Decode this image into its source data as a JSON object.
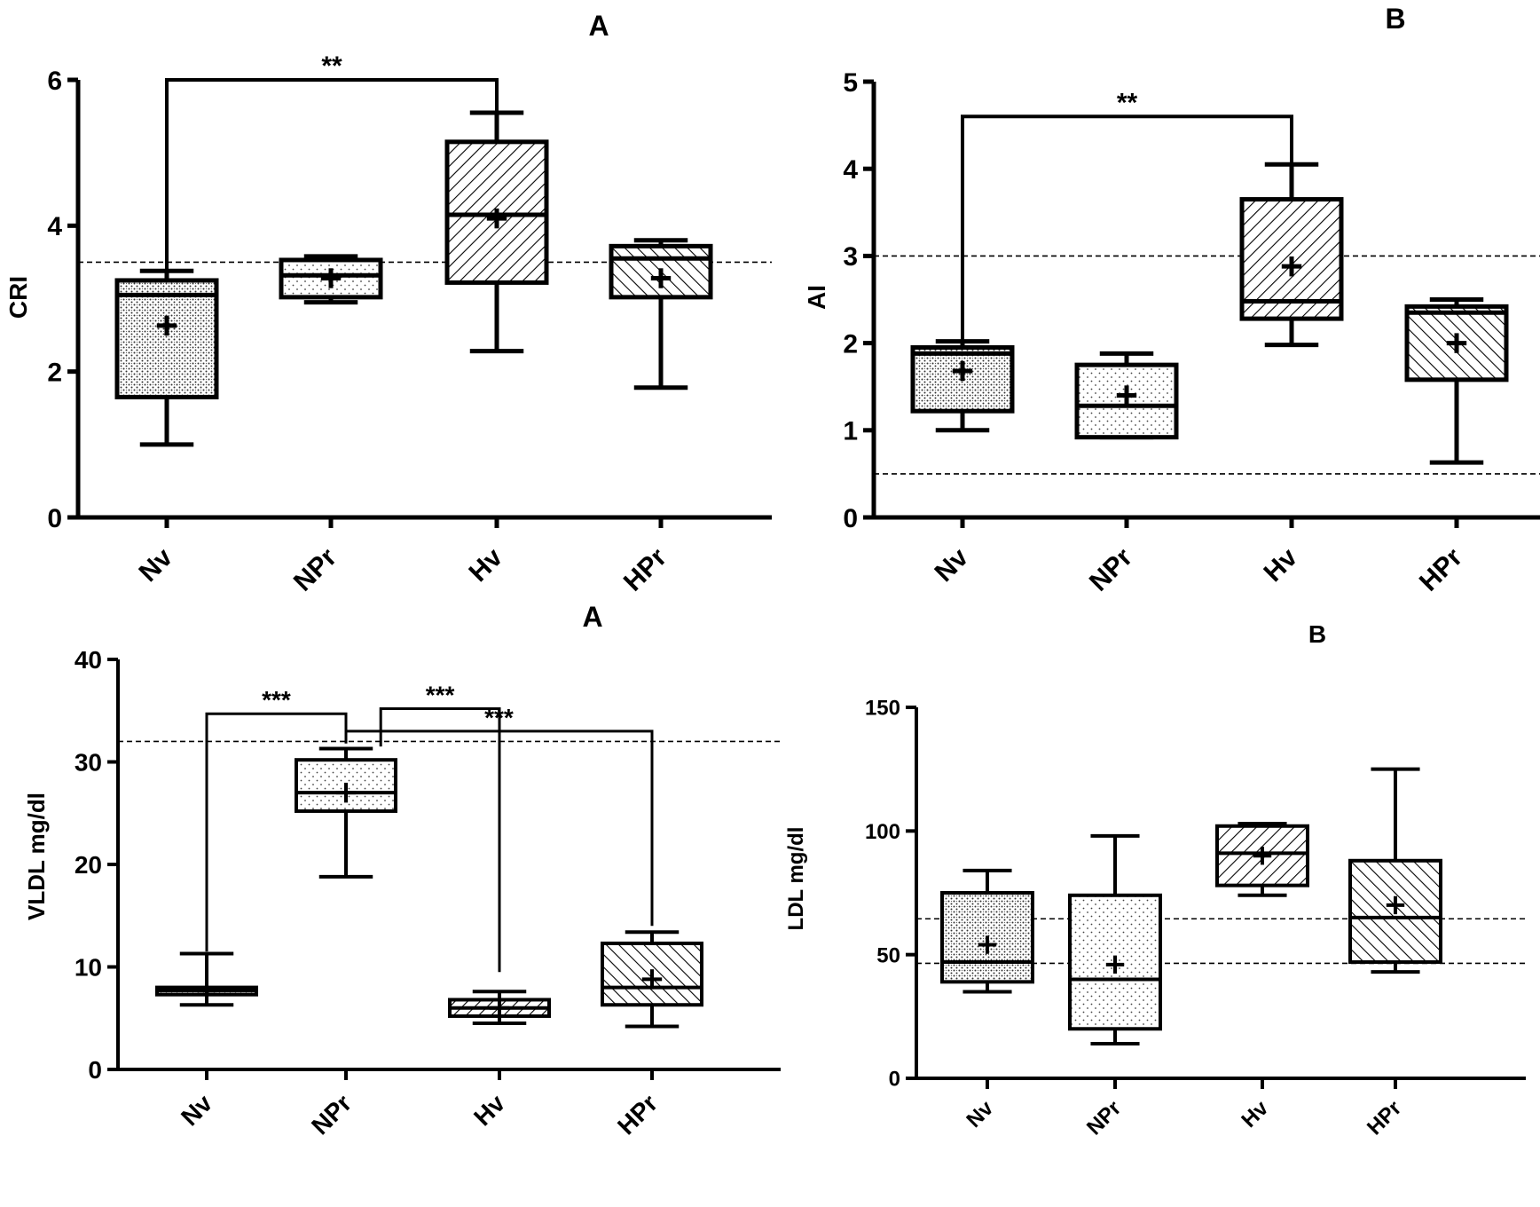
{
  "chart_data": [
    {
      "panel_label": "A",
      "type": "boxplot",
      "ylabel": "CRI",
      "ylim": [
        0,
        6
      ],
      "yticks": [
        "0",
        "2",
        "4",
        "6"
      ],
      "categories": [
        "Nv",
        "NPr",
        "Hv",
        "HPr"
      ],
      "boxes": [
        {
          "name": "Nv",
          "min": 1.0,
          "q1": 1.65,
          "median": 3.05,
          "q3": 3.25,
          "max": 3.38,
          "mean": 2.63,
          "pattern": "dots-dense"
        },
        {
          "name": "NPr",
          "min": 2.95,
          "q1": 3.02,
          "median": 3.32,
          "q3": 3.53,
          "max": 3.58,
          "mean": 3.28,
          "pattern": "dots-sparse"
        },
        {
          "name": "Hv",
          "min": 2.28,
          "q1": 3.22,
          "median": 4.15,
          "q3": 5.15,
          "max": 5.55,
          "mean": 4.1,
          "pattern": "hatch-forward"
        },
        {
          "name": "HPr",
          "min": 1.78,
          "q1": 3.02,
          "median": 3.55,
          "q3": 3.72,
          "max": 3.8,
          "mean": 3.28,
          "pattern": "hatch-back"
        }
      ],
      "reference_lines": [
        3.5
      ],
      "significance": [
        {
          "from": "Nv",
          "to": "Hv",
          "label": "**",
          "y": 6.0
        }
      ]
    },
    {
      "panel_label": "B",
      "type": "boxplot",
      "ylabel": "AI",
      "ylim": [
        0,
        5
      ],
      "yticks": [
        "0",
        "1",
        "2",
        "3",
        "4",
        "5"
      ],
      "categories": [
        "Nv",
        "NPr",
        "Hv",
        "HPr"
      ],
      "boxes": [
        {
          "name": "Nv",
          "min": 1.0,
          "q1": 1.22,
          "median": 1.88,
          "q3": 1.95,
          "max": 2.02,
          "mean": 1.68,
          "pattern": "dots-dense"
        },
        {
          "name": "NPr",
          "min": 0.92,
          "q1": 0.92,
          "median": 1.28,
          "q3": 1.75,
          "max": 1.88,
          "mean": 1.4,
          "pattern": "dots-sparse"
        },
        {
          "name": "Hv",
          "min": 1.98,
          "q1": 2.28,
          "median": 2.48,
          "q3": 3.65,
          "max": 4.05,
          "mean": 2.88,
          "pattern": "hatch-forward"
        },
        {
          "name": "HPr",
          "min": 0.63,
          "q1": 1.58,
          "median": 2.35,
          "q3": 2.42,
          "max": 2.5,
          "mean": 2.0,
          "pattern": "hatch-back"
        }
      ],
      "reference_lines": [
        3.0,
        0.5
      ],
      "significance": [
        {
          "from": "Nv",
          "to": "Hv",
          "label": "**",
          "y": 4.6
        }
      ]
    },
    {
      "panel_label": "A",
      "type": "boxplot",
      "ylabel": "VLDL mg/dl",
      "ylim": [
        0,
        40
      ],
      "yticks": [
        "0",
        "10",
        "20",
        "30",
        "40"
      ],
      "categories": [
        "Nv",
        "NPr",
        "Hv",
        "HPr"
      ],
      "boxes": [
        {
          "name": "Nv",
          "min": 6.3,
          "q1": 7.3,
          "median": 7.7,
          "q3": 8.0,
          "max": 11.3,
          "mean": 7.7,
          "pattern": "dots-dense"
        },
        {
          "name": "NPr",
          "min": 18.8,
          "q1": 25.2,
          "median": 27.0,
          "q3": 30.2,
          "max": 31.3,
          "mean": 27.0,
          "pattern": "dots-sparse"
        },
        {
          "name": "Hv",
          "min": 4.5,
          "q1": 5.2,
          "median": 6.0,
          "q3": 6.8,
          "max": 7.6,
          "mean": 6.0,
          "pattern": "hatch-forward"
        },
        {
          "name": "HPr",
          "min": 4.2,
          "q1": 6.3,
          "median": 8.0,
          "q3": 12.3,
          "max": 13.4,
          "mean": 8.8,
          "pattern": "hatch-back"
        }
      ],
      "reference_lines": [
        32.0
      ],
      "significance": [
        {
          "from": "Nv",
          "to": "NPr",
          "label": "***",
          "left_end": 11.5,
          "right_end": 33.0,
          "y": 34.7
        },
        {
          "from": "NPr",
          "to": "Hv",
          "label": "***",
          "left_end": 31.5,
          "right_end": 9.5,
          "y": 35.2,
          "offset_left": 0.35
        },
        {
          "from": "NPr",
          "to": "HPr",
          "label": "***",
          "left_end": 31.8,
          "right_end": 14.0,
          "y": 33.0
        }
      ]
    },
    {
      "panel_label": "B",
      "type": "boxplot",
      "ylabel": "LDL mg/dl",
      "ylim": [
        0,
        150
      ],
      "yticks": [
        "0",
        "50",
        "100",
        "150"
      ],
      "categories": [
        "Nv",
        "NPr",
        "Hv",
        "HPr"
      ],
      "boxes": [
        {
          "name": "Nv",
          "min": 35,
          "q1": 39,
          "median": 47,
          "q3": 75,
          "max": 84,
          "mean": 54,
          "pattern": "dots-dense"
        },
        {
          "name": "NPr",
          "min": 14,
          "q1": 20,
          "median": 40,
          "q3": 74,
          "max": 98,
          "mean": 46,
          "pattern": "dots-sparse"
        },
        {
          "name": "Hv",
          "min": 74,
          "q1": 78,
          "median": 91,
          "q3": 102,
          "max": 103,
          "mean": 90,
          "pattern": "hatch-forward"
        },
        {
          "name": "HPr",
          "min": 43,
          "q1": 47,
          "median": 65,
          "q3": 88,
          "max": 125,
          "mean": 70,
          "pattern": "hatch-back"
        }
      ],
      "reference_lines": [
        64.5,
        46.5
      ],
      "significance": []
    }
  ]
}
